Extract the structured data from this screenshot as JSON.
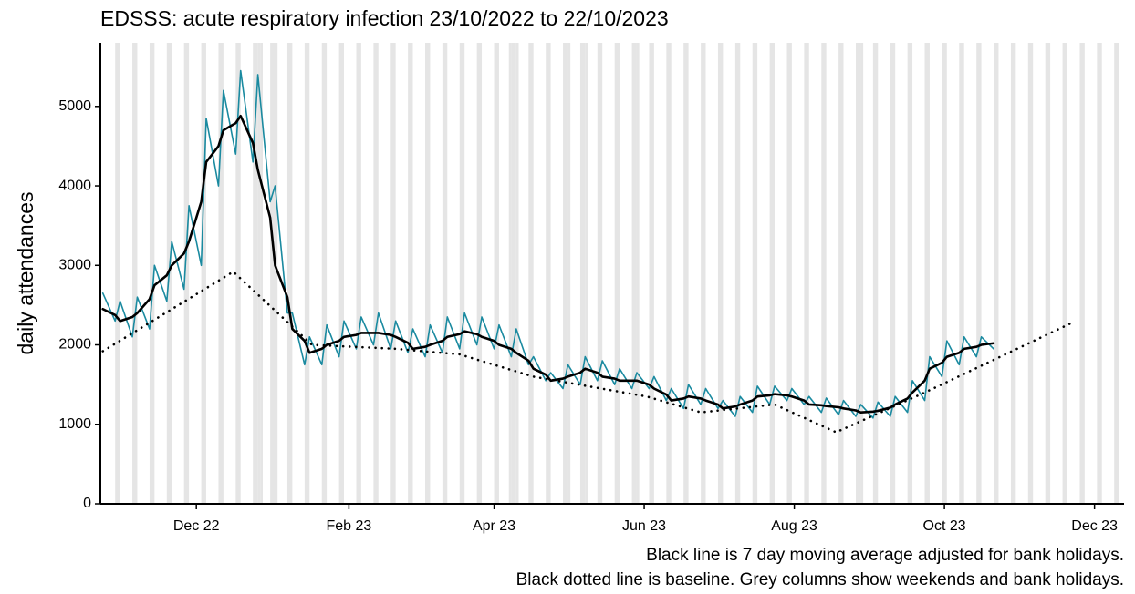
{
  "chart_data": {
    "type": "line",
    "title": "EDSSS: acute respiratory infection 23/10/2022 to 22/10/2023",
    "y_label": "daily attendances",
    "caption": [
      "Black line is 7 day moving average adjusted for bank holidays.",
      "Black dotted line is baseline. Grey columns show weekends and bank holidays."
    ],
    "xlim": [
      "2022-10-23",
      "2023-12-13"
    ],
    "xticks": [
      {
        "value": "2022-12-01",
        "label": "Dec 22"
      },
      {
        "value": "2023-02-01",
        "label": "Feb 23"
      },
      {
        "value": "2023-04-01",
        "label": "Apr 23"
      },
      {
        "value": "2023-06-01",
        "label": "Jun 23"
      },
      {
        "value": "2023-08-01",
        "label": "Aug 23"
      },
      {
        "value": "2023-10-01",
        "label": "Oct 23"
      },
      {
        "value": "2023-12-01",
        "label": "Dec 23"
      }
    ],
    "ylim": [
      0,
      5800
    ],
    "yticks": [
      0,
      1000,
      2000,
      3000,
      4000,
      5000
    ],
    "shading_color": "#e5e5e5",
    "weekends": [
      "2022-10-29",
      "2022-11-05",
      "2022-11-12",
      "2022-11-19",
      "2022-11-26",
      "2022-12-03",
      "2022-12-10",
      "2022-12-17",
      "2022-12-24",
      "2022-12-31",
      "2023-01-07",
      "2023-01-14",
      "2023-01-21",
      "2023-01-28",
      "2023-02-04",
      "2023-02-11",
      "2023-02-18",
      "2023-02-25",
      "2023-03-04",
      "2023-03-11",
      "2023-03-18",
      "2023-03-25",
      "2023-04-01",
      "2023-04-08",
      "2023-04-15",
      "2023-04-22",
      "2023-04-29",
      "2023-05-06",
      "2023-05-13",
      "2023-05-20",
      "2023-05-27",
      "2023-06-03",
      "2023-06-10",
      "2023-06-17",
      "2023-06-24",
      "2023-07-01",
      "2023-07-08",
      "2023-07-15",
      "2023-07-22",
      "2023-07-29",
      "2023-08-05",
      "2023-08-12",
      "2023-08-19",
      "2023-08-26",
      "2023-09-02",
      "2023-09-09",
      "2023-09-16",
      "2023-09-23",
      "2023-09-30",
      "2023-10-07",
      "2023-10-14",
      "2023-10-21",
      "2023-10-28",
      "2023-11-04",
      "2023-11-11",
      "2023-11-18",
      "2023-11-25",
      "2023-12-02",
      "2023-12-09"
    ],
    "bank_holidays": [
      "2022-12-26",
      "2022-12-27",
      "2023-01-02",
      "2023-04-07",
      "2023-04-10",
      "2023-05-01",
      "2023-05-08",
      "2023-05-29",
      "2023-08-28"
    ],
    "x": [
      "2022-10-24",
      "2022-10-29",
      "2022-10-31",
      "2022-11-05",
      "2022-11-07",
      "2022-11-12",
      "2022-11-14",
      "2022-11-19",
      "2022-11-21",
      "2022-11-26",
      "2022-11-28",
      "2022-12-03",
      "2022-12-05",
      "2022-12-10",
      "2022-12-12",
      "2022-12-17",
      "2022-12-19",
      "2022-12-24",
      "2022-12-26",
      "2022-12-31",
      "2023-01-02",
      "2023-01-07",
      "2023-01-09",
      "2023-01-14",
      "2023-01-16",
      "2023-01-21",
      "2023-01-23",
      "2023-01-28",
      "2023-01-30",
      "2023-02-04",
      "2023-02-06",
      "2023-02-11",
      "2023-02-13",
      "2023-02-18",
      "2023-02-20",
      "2023-02-25",
      "2023-02-27",
      "2023-03-04",
      "2023-03-06",
      "2023-03-11",
      "2023-03-13",
      "2023-03-18",
      "2023-03-20",
      "2023-03-25",
      "2023-03-27",
      "2023-04-01",
      "2023-04-03",
      "2023-04-08",
      "2023-04-10",
      "2023-04-15",
      "2023-04-17",
      "2023-04-22",
      "2023-04-24",
      "2023-04-29",
      "2023-05-01",
      "2023-05-06",
      "2023-05-08",
      "2023-05-13",
      "2023-05-15",
      "2023-05-20",
      "2023-05-22",
      "2023-05-27",
      "2023-05-29",
      "2023-06-03",
      "2023-06-05",
      "2023-06-10",
      "2023-06-12",
      "2023-06-17",
      "2023-06-19",
      "2023-06-24",
      "2023-06-26",
      "2023-07-01",
      "2023-07-03",
      "2023-07-08",
      "2023-07-10",
      "2023-07-15",
      "2023-07-17",
      "2023-07-22",
      "2023-07-24",
      "2023-07-29",
      "2023-07-31",
      "2023-08-05",
      "2023-08-07",
      "2023-08-12",
      "2023-08-14",
      "2023-08-19",
      "2023-08-21",
      "2023-08-26",
      "2023-08-28",
      "2023-09-02",
      "2023-09-04",
      "2023-09-09",
      "2023-09-11",
      "2023-09-16",
      "2023-09-18",
      "2023-09-23",
      "2023-09-25",
      "2023-09-30",
      "2023-10-02",
      "2023-10-07",
      "2023-10-09",
      "2023-10-14",
      "2023-10-16",
      "2023-10-21"
    ],
    "series": [
      {
        "color": "#1a8aa0",
        "width": 1.6,
        "values": [
          2650,
          2300,
          2550,
          2100,
          2600,
          2200,
          3000,
          2550,
          3300,
          2700,
          3750,
          3000,
          4850,
          4000,
          5200,
          4400,
          5450,
          4300,
          5400,
          3800,
          4000,
          2400,
          2400,
          1750,
          2100,
          1750,
          2250,
          1850,
          2300,
          1950,
          2350,
          2000,
          2400,
          1950,
          2300,
          1900,
          2200,
          1850,
          2250,
          1900,
          2350,
          1950,
          2400,
          2000,
          2350,
          1950,
          2250,
          1850,
          2200,
          1750,
          1850,
          1550,
          1650,
          1450,
          1750,
          1500,
          1850,
          1550,
          1800,
          1500,
          1700,
          1450,
          1650,
          1450,
          1600,
          1300,
          1450,
          1200,
          1500,
          1250,
          1450,
          1200,
          1300,
          1100,
          1350,
          1150,
          1480,
          1250,
          1480,
          1300,
          1450,
          1250,
          1350,
          1150,
          1330,
          1120,
          1300,
          1100,
          1250,
          1080,
          1280,
          1100,
          1350,
          1150,
          1550,
          1300,
          1850,
          1600,
          2050,
          1750,
          2100,
          1850,
          2100,
          1950
        ]
      },
      {
        "color": "#000000",
        "width": 2.6,
        "values": [
          2450,
          2375,
          2300,
          2350,
          2400,
          2575,
          2750,
          2875,
          3000,
          3150,
          3300,
          3800,
          4300,
          4500,
          4700,
          4790,
          4880,
          4540,
          4200,
          3600,
          3000,
          2600,
          2200,
          2050,
          1900,
          1950,
          2000,
          2050,
          2100,
          2125,
          2150,
          2150,
          2150,
          2125,
          2100,
          2025,
          1950,
          1975,
          2000,
          2050,
          2100,
          2135,
          2170,
          2135,
          2100,
          2050,
          2000,
          1950,
          1900,
          1800,
          1700,
          1625,
          1550,
          1575,
          1600,
          1650,
          1700,
          1650,
          1600,
          1575,
          1550,
          1550,
          1550,
          1500,
          1450,
          1375,
          1300,
          1325,
          1350,
          1325,
          1300,
          1250,
          1200,
          1225,
          1250,
          1300,
          1350,
          1365,
          1380,
          1365,
          1350,
          1300,
          1250,
          1240,
          1230,
          1215,
          1200,
          1175,
          1150,
          1160,
          1170,
          1210,
          1250,
          1325,
          1400,
          1550,
          1700,
          1775,
          1850,
          1900,
          1950,
          1975,
          2000,
          2020
        ]
      },
      {
        "color": "#000000",
        "width": 2.6,
        "dotted": true,
        "x": [
          "2022-10-24",
          "2022-12-16",
          "2023-01-17",
          "2023-02-20",
          "2023-03-18",
          "2023-04-17",
          "2023-06-02",
          "2023-06-24",
          "2023-07-24",
          "2023-08-18",
          "2023-09-23",
          "2023-11-22"
        ],
        "values": [
          1920,
          2920,
          2000,
          1950,
          1880,
          1600,
          1350,
          1150,
          1250,
          900,
          1400,
          2280
        ]
      }
    ]
  }
}
